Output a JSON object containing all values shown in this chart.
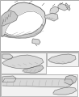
{
  "bg_color": "#ffffff",
  "border_color": "#888888",
  "line_color": "#444444",
  "dark_color": "#222222",
  "part_fill": "#d8d8d8",
  "part_edge": "#555555",
  "white": "#ffffff",
  "shadow": "#bbbbbb",
  "panel_bg": "#f2f2f2"
}
